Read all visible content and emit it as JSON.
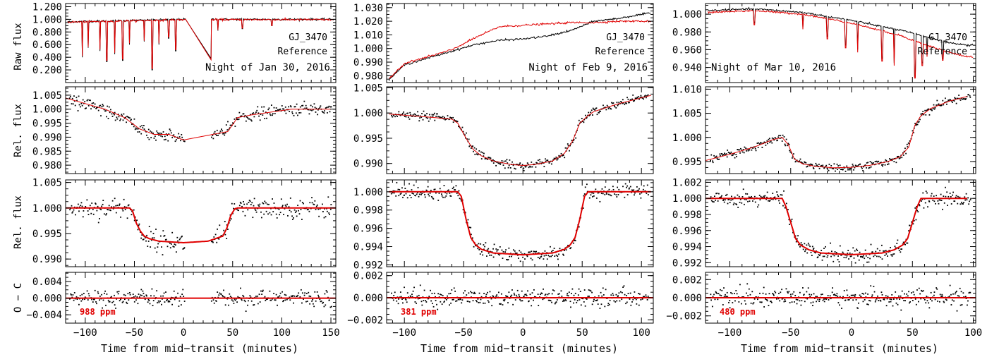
{
  "figure": {
    "xlabel": "Time from mid−transit (minutes)",
    "ylabels": [
      "Raw flux",
      "Rel. flux",
      "Rel. flux",
      "O − C"
    ]
  },
  "chart_data": [
    {
      "type": "line",
      "night": "Night of Jan 30, 2016",
      "xlim": [
        -120,
        155
      ],
      "xticks": [
        -100,
        -50,
        0,
        50,
        100,
        150
      ],
      "xtick_labels": [
        "−100",
        "−50",
        "0",
        "50",
        "100",
        "150"
      ],
      "panels": [
        {
          "kind": "raw",
          "ylim": [
            0.0,
            1.25
          ],
          "yticks": [
            0.2,
            0.4,
            0.6,
            0.8,
            1.0,
            1.2
          ],
          "ytick_labels": [
            "0.200",
            "0.400",
            "0.600",
            "0.800",
            "1.000",
            "1.200"
          ],
          "legend": [
            "GJ_3470",
            "Reference"
          ],
          "series": [
            {
              "name": "GJ_3470",
              "color": "#000000",
              "base_x": [
                -120,
                -60,
                0,
                60,
                150
              ],
              "base_y": [
                0.96,
                0.98,
                1.0,
                1.0,
                1.0
              ],
              "dips": [
                [
                  -103,
                  0.4
                ],
                [
                  -97,
                  0.55
                ],
                [
                  -85,
                  0.5
                ],
                [
                  -78,
                  0.33
                ],
                [
                  -70,
                  0.45
                ],
                [
                  -62,
                  0.35
                ],
                [
                  -55,
                  0.6
                ],
                [
                  -40,
                  0.65
                ],
                [
                  -32,
                  0.2
                ],
                [
                  -25,
                  0.6
                ],
                [
                  -15,
                  0.7
                ],
                [
                  -8,
                  0.5
                ],
                [
                  35,
                  0.82
                ],
                [
                  60,
                  0.85
                ],
                [
                  90,
                  0.9
                ]
              ],
              "gap": [
                2,
                28
              ],
              "gap_end_y": 0.38
            },
            {
              "name": "Reference",
              "color": "#e00000",
              "base_x": [
                -120,
                -60,
                0,
                60,
                150
              ],
              "base_y": [
                0.955,
                0.975,
                0.995,
                0.995,
                0.995
              ],
              "dips": [
                [
                  -103,
                  0.42
                ],
                [
                  -97,
                  0.56
                ],
                [
                  -85,
                  0.52
                ],
                [
                  -78,
                  0.35
                ],
                [
                  -70,
                  0.47
                ],
                [
                  -62,
                  0.37
                ],
                [
                  -55,
                  0.62
                ],
                [
                  -40,
                  0.66
                ],
                [
                  -32,
                  0.22
                ],
                [
                  -25,
                  0.62
                ],
                [
                  -15,
                  0.72
                ],
                [
                  -8,
                  0.52
                ],
                [
                  35,
                  0.83
                ],
                [
                  60,
                  0.86
                ],
                [
                  90,
                  0.9
                ]
              ],
              "gap": [
                2,
                28
              ],
              "gap_end_y": 0.36
            }
          ]
        },
        {
          "kind": "detrended",
          "ylim": [
            0.977,
            1.008
          ],
          "yticks": [
            0.98,
            0.985,
            0.99,
            0.995,
            1.0,
            1.005
          ],
          "ytick_labels": [
            "0.980",
            "0.985",
            "0.990",
            "0.995",
            "1.000",
            "1.005"
          ],
          "model": {
            "x": [
              -120,
              -100,
              -80,
              -60,
              -45,
              -30,
              -15,
              0,
              15,
              30,
              45,
              55,
              70,
              90,
              110,
              130,
              150
            ],
            "y": [
              1.004,
              1.002,
              1.0,
              0.997,
              0.993,
              0.991,
              0.991,
              0.989,
              0.99,
              0.991,
              0.992,
              0.997,
              0.998,
              0.999,
              1.0,
              1.0,
              1.0
            ]
          },
          "scatter_sigma": 0.0011,
          "gap": [
            2,
            28
          ]
        },
        {
          "kind": "transit",
          "ylim": [
            0.9885,
            1.0055
          ],
          "yticks": [
            0.99,
            0.995,
            1.0,
            1.005
          ],
          "ytick_labels": [
            "0.990",
            "0.995",
            "1.000",
            "1.005"
          ],
          "model": {
            "x": [
              -120,
              -55,
              -52,
              -48,
              -44,
              -40,
              -35,
              -25,
              0,
              25,
              40,
              44,
              48,
              52,
              55,
              155
            ],
            "y": [
              1.0,
              1.0,
              0.9995,
              0.997,
              0.9955,
              0.9945,
              0.994,
              0.9935,
              0.9932,
              0.9935,
              0.9945,
              0.996,
              0.9985,
              0.9998,
              1.0,
              1.0
            ]
          },
          "scatter_sigma": 0.001,
          "gap": [
            2,
            28
          ]
        },
        {
          "kind": "residuals",
          "ylim": [
            -0.006,
            0.0062
          ],
          "yticks": [
            -0.004,
            0.0,
            0.004
          ],
          "ytick_labels": [
            "−0.004",
            "0.000",
            "0.004"
          ],
          "rms_label": "988 ppm",
          "scatter_sigma": 0.001,
          "gap": [
            2,
            28
          ]
        }
      ]
    },
    {
      "type": "line",
      "night": "Night of Feb 9, 2016",
      "xlim": [
        -115,
        110
      ],
      "xticks": [
        -100,
        -50,
        0,
        50,
        100
      ],
      "xtick_labels": [
        "−100",
        "−50",
        "0",
        "50",
        "100"
      ],
      "panels": [
        {
          "kind": "raw",
          "ylim": [
            0.975,
            1.033
          ],
          "yticks": [
            0.98,
            0.99,
            1.0,
            1.01,
            1.02,
            1.03
          ],
          "ytick_labels": [
            "0.980",
            "0.990",
            "1.000",
            "1.010",
            "1.020",
            "1.030"
          ],
          "legend": [
            "GJ_3470",
            "Reference"
          ],
          "series": [
            {
              "name": "GJ_3470",
              "color": "#000000",
              "base_x": [
                -113,
                -100,
                -80,
                -60,
                -40,
                -20,
                0,
                20,
                40,
                60,
                80,
                100,
                108
              ],
              "base_y": [
                0.977,
                0.988,
                0.993,
                0.998,
                1.003,
                1.006,
                1.007,
                1.009,
                1.013,
                1.02,
                1.022,
                1.025,
                1.026
              ],
              "dips": []
            },
            {
              "name": "Reference",
              "color": "#e00000",
              "base_x": [
                -113,
                -100,
                -80,
                -60,
                -40,
                -20,
                0,
                20,
                40,
                60,
                80,
                100,
                108
              ],
              "base_y": [
                0.978,
                0.989,
                0.994,
                0.999,
                1.008,
                1.016,
                1.017,
                1.018,
                1.019,
                1.019,
                1.02,
                1.02,
                1.02
              ],
              "dips": []
            }
          ]
        },
        {
          "kind": "detrended",
          "ylim": [
            0.988,
            1.0052
          ],
          "yticks": [
            0.99,
            0.995,
            1.0,
            1.005
          ],
          "ytick_labels": [
            "0.990",
            "0.995",
            "1.000",
            "1.005"
          ],
          "model": {
            "x": [
              -113,
              -80,
              -60,
              -55,
              -48,
              -42,
              -35,
              -25,
              -10,
              0,
              10,
              25,
              35,
              42,
              48,
              55,
              60,
              80,
              108
            ],
            "y": [
              0.9998,
              0.9992,
              0.9988,
              0.998,
              0.995,
              0.9928,
              0.9915,
              0.9905,
              0.9898,
              0.9896,
              0.9898,
              0.9905,
              0.992,
              0.9945,
              0.998,
              0.9995,
              1.0003,
              1.0018,
              1.0035
            ]
          },
          "scatter_sigma": 0.0004
        },
        {
          "kind": "transit",
          "ylim": [
            0.9918,
            1.0013
          ],
          "yticks": [
            0.992,
            0.994,
            0.996,
            0.998,
            1.0
          ],
          "ytick_labels": [
            "0.992",
            "0.994",
            "0.996",
            "0.998",
            "1.000"
          ],
          "model": {
            "x": [
              -113,
              -55,
              -52,
              -48,
              -44,
              -40,
              -35,
              -25,
              0,
              25,
              35,
              40,
              44,
              48,
              52,
              55,
              108
            ],
            "y": [
              1.0,
              1.0,
              0.9995,
              0.997,
              0.995,
              0.9942,
              0.9937,
              0.9933,
              0.9931,
              0.9933,
              0.9937,
              0.9942,
              0.995,
              0.997,
              0.9995,
              1.0,
              1.0
            ]
          },
          "scatter_sigma": 0.0004
        },
        {
          "kind": "residuals",
          "ylim": [
            -0.0023,
            0.0023
          ],
          "yticks": [
            -0.002,
            0.0,
            0.002
          ],
          "ytick_labels": [
            "−0.002",
            "0.000",
            "0.002"
          ],
          "rms_label": "381 ppm",
          "scatter_sigma": 0.00038
        }
      ]
    },
    {
      "type": "line",
      "night": "Night of Mar 10, 2016",
      "xlim": [
        -120,
        102
      ],
      "xticks": [
        -100,
        -50,
        0,
        50,
        100
      ],
      "xtick_labels": [
        "−100",
        "−50",
        "0",
        "50",
        "100"
      ],
      "panels": [
        {
          "kind": "raw",
          "ylim": [
            0.923,
            1.012
          ],
          "yticks": [
            0.94,
            0.96,
            0.98,
            1.0
          ],
          "ytick_labels": [
            "0.940",
            "0.960",
            "0.980",
            "1.000"
          ],
          "legend": [
            "GJ_3470",
            "Reference"
          ],
          "series": [
            {
              "name": "GJ_3470",
              "color": "#000000",
              "base_x": [
                -120,
                -80,
                -40,
                0,
                40,
                60,
                80,
                95
              ],
              "base_y": [
                1.004,
                1.006,
                1.002,
                0.993,
                0.982,
                0.975,
                0.968,
                0.965
              ],
              "dips": [
                [
                  -80,
                  0.99
                ],
                [
                  -40,
                  0.985
                ],
                [
                  -20,
                  0.975
                ],
                [
                  -5,
                  0.965
                ],
                [
                  5,
                  0.96
                ],
                [
                  25,
                  0.95
                ],
                [
                  35,
                  0.945
                ],
                [
                  52,
                  0.93
                ],
                [
                  58,
                  0.945
                ],
                [
                  62,
                  0.955
                ],
                [
                  75,
                  0.95
                ]
              ]
            },
            {
              "name": "Reference",
              "color": "#e00000",
              "base_x": [
                -120,
                -80,
                -40,
                0,
                40,
                60,
                80,
                95
              ],
              "base_y": [
                1.002,
                1.004,
                1.0,
                0.99,
                0.976,
                0.966,
                0.957,
                0.952
              ],
              "dips": [
                [
                  -80,
                  0.988
                ],
                [
                  -40,
                  0.983
                ],
                [
                  -20,
                  0.972
                ],
                [
                  -5,
                  0.962
                ],
                [
                  5,
                  0.957
                ],
                [
                  25,
                  0.947
                ],
                [
                  35,
                  0.942
                ],
                [
                  52,
                  0.928
                ],
                [
                  58,
                  0.942
                ],
                [
                  62,
                  0.952
                ],
                [
                  75,
                  0.948
                ]
              ]
            }
          ]
        },
        {
          "kind": "detrended",
          "ylim": [
            0.9925,
            1.0105
          ],
          "yticks": [
            0.995,
            1.0,
            1.005,
            1.01
          ],
          "ytick_labels": [
            "0.995",
            "1.000",
            "1.005",
            "1.010"
          ],
          "model": {
            "x": [
              -120,
              -100,
              -80,
              -65,
              -57,
              -52,
              -47,
              -40,
              -30,
              -15,
              0,
              15,
              30,
              40,
              47,
              52,
              57,
              65,
              80,
              95
            ],
            "y": [
              0.9952,
              0.9965,
              0.998,
              0.9995,
              1.0,
              0.9985,
              0.9955,
              0.9945,
              0.994,
              0.9937,
              0.9938,
              0.9942,
              0.995,
              0.996,
              0.998,
              1.0025,
              1.0045,
              1.006,
              1.0075,
              1.0085
            ]
          },
          "scatter_sigma": 0.0004
        },
        {
          "kind": "transit",
          "ylim": [
            0.9915,
            1.0023
          ],
          "yticks": [
            0.992,
            0.994,
            0.996,
            0.998,
            1.0,
            1.002
          ],
          "ytick_labels": [
            "0.992",
            "0.994",
            "0.996",
            "0.998",
            "1.000",
            "1.002"
          ],
          "model": {
            "x": [
              -120,
              -57,
              -54,
              -50,
              -46,
              -42,
              -35,
              -25,
              0,
              25,
              35,
              42,
              46,
              50,
              54,
              57,
              95
            ],
            "y": [
              1.0,
              1.0,
              0.999,
              0.997,
              0.995,
              0.9942,
              0.9936,
              0.9932,
              0.993,
              0.9932,
              0.9936,
              0.9942,
              0.995,
              0.997,
              0.999,
              1.0,
              1.0
            ]
          },
          "scatter_sigma": 0.0005
        },
        {
          "kind": "residuals",
          "ylim": [
            -0.0028,
            0.0028
          ],
          "yticks": [
            -0.002,
            0.0,
            0.002
          ],
          "ytick_labels": [
            "−0.002",
            "0.000",
            "0.002"
          ],
          "rms_label": "480 ppm",
          "scatter_sigma": 0.00048
        }
      ]
    }
  ]
}
